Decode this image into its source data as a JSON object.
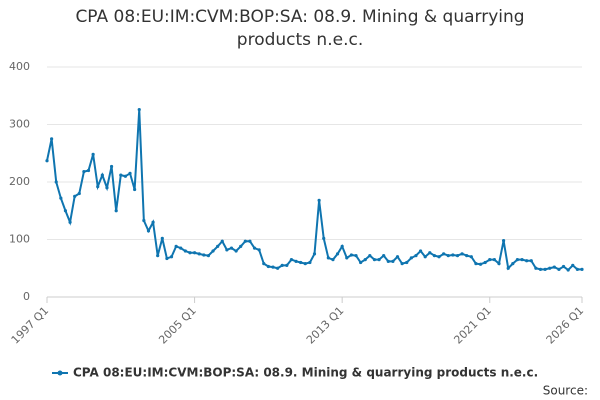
{
  "chart_data": {
    "type": "line",
    "title": "CPA 08:EU:IM:CVM:BOP:SA: 08.9. Mining & quarrying products n.e.c.",
    "source": "Source:",
    "categories": [
      "1997 Q1",
      null,
      null,
      null,
      null,
      null,
      null,
      null,
      null,
      null,
      null,
      null,
      null,
      null,
      null,
      null,
      null,
      null,
      null,
      null,
      null,
      null,
      null,
      null,
      null,
      null,
      null,
      null,
      null,
      null,
      null,
      null,
      "2005 Q1",
      null,
      null,
      null,
      null,
      null,
      null,
      null,
      null,
      null,
      null,
      null,
      null,
      null,
      null,
      null,
      null,
      null,
      null,
      null,
      null,
      null,
      null,
      null,
      null,
      null,
      null,
      null,
      null,
      null,
      null,
      null,
      "2013 Q1",
      null,
      null,
      null,
      null,
      null,
      null,
      null,
      null,
      null,
      null,
      null,
      null,
      null,
      null,
      null,
      null,
      null,
      null,
      null,
      null,
      null,
      null,
      null,
      null,
      null,
      null,
      null,
      null,
      null,
      null,
      null,
      "2021 Q1",
      null,
      null,
      null,
      null,
      null,
      null,
      null,
      null,
      null,
      null,
      null,
      null,
      null,
      null,
      null,
      null,
      null,
      null,
      null,
      "2026 Q1"
    ],
    "series": [
      {
        "name": "CPA 08:EU:IM:CVM:BOP:SA: 08.9. Mining & quarrying products n.e.c.",
        "color": "#0f75b0",
        "values": [
          237,
          275,
          200,
          172,
          150,
          130,
          175,
          180,
          218,
          220,
          248,
          192,
          212,
          190,
          227,
          150,
          212,
          210,
          215,
          187,
          326,
          133,
          115,
          130,
          72,
          102,
          67,
          70,
          88,
          85,
          80,
          77,
          77,
          75,
          73,
          72,
          80,
          88,
          97,
          82,
          85,
          80,
          88,
          97,
          97,
          85,
          82,
          58,
          53,
          52,
          50,
          55,
          55,
          65,
          62,
          60,
          58,
          60,
          75,
          168,
          102,
          68,
          65,
          75,
          88,
          68,
          73,
          72,
          60,
          65,
          72,
          65,
          65,
          72,
          62,
          62,
          70,
          58,
          60,
          68,
          72,
          80,
          70,
          77,
          72,
          70,
          75,
          72,
          73,
          72,
          75,
          72,
          70,
          58,
          57,
          60,
          65,
          65,
          58,
          98,
          50,
          58,
          65,
          65,
          63,
          63,
          50,
          48,
          48,
          50,
          52,
          48,
          53,
          47,
          55,
          48,
          48
        ]
      }
    ],
    "ylim": [
      0,
      400
    ],
    "yticks": [
      0,
      100,
      200,
      300,
      400
    ],
    "grid": true
  }
}
